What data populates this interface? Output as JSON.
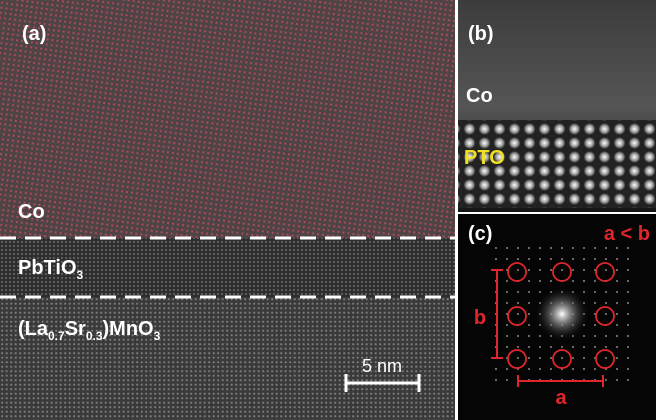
{
  "panel_a": {
    "label": "(a)",
    "layers": [
      [
        "Co"
      ],
      [
        "PbTiO",
        "3"
      ],
      [
        "(La",
        "0.7",
        "Sr",
        "0.3",
        ")MnO",
        "3"
      ]
    ],
    "scale_bar": "5 nm"
  },
  "panel_b": {
    "label": "(b)",
    "top": "Co",
    "bottom": "PTO"
  },
  "panel_c": {
    "label": "(c)",
    "relation": "a < b",
    "vertical": "b",
    "horizontal": "a"
  }
}
